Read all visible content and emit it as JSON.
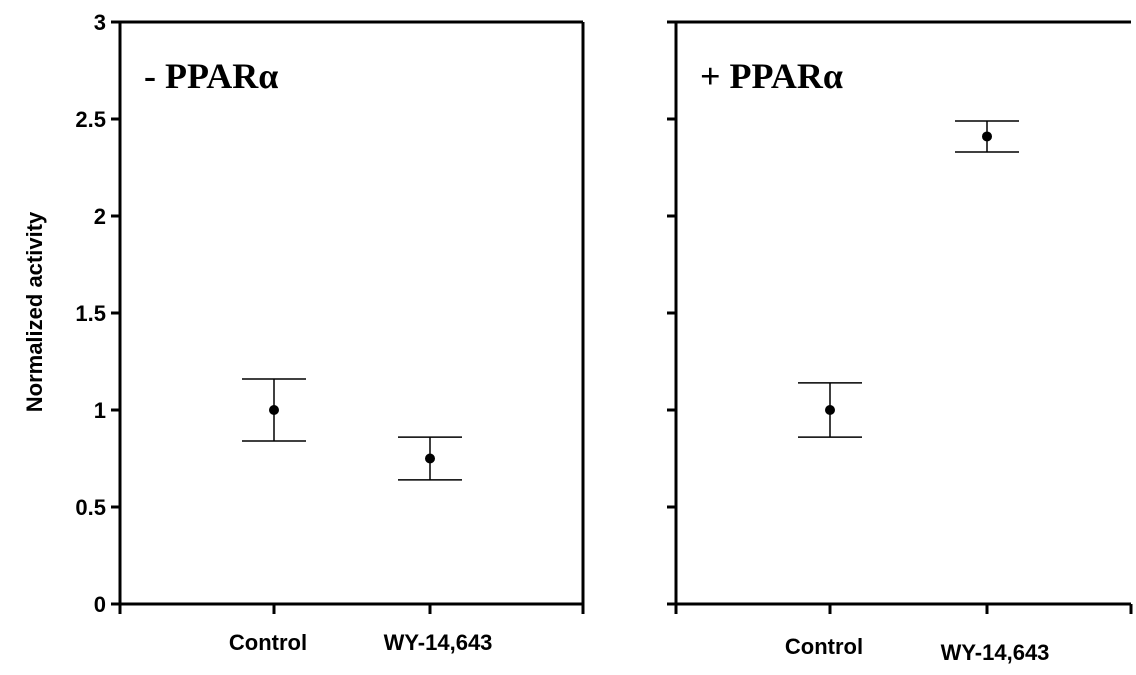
{
  "chart_data": [
    {
      "type": "scatter",
      "title": "- PPARα",
      "ylabel": "Normalized activity",
      "xlabel": "",
      "categories": [
        "Control",
        "WY-14,643"
      ],
      "values": [
        1.0,
        0.75
      ],
      "error_low": [
        0.84,
        0.64
      ],
      "error_high": [
        1.16,
        0.86
      ],
      "ylim": [
        0,
        3
      ],
      "yticks": [
        "0",
        "0.5",
        "1",
        "1.5",
        "2",
        "2.5",
        "3"
      ],
      "grid": false
    },
    {
      "type": "scatter",
      "title": "+ PPARα",
      "ylabel": "",
      "xlabel": "",
      "categories": [
        "Control",
        "WY-14,643"
      ],
      "values": [
        1.0,
        2.41
      ],
      "error_low": [
        0.86,
        2.33
      ],
      "error_high": [
        1.14,
        2.49
      ],
      "ylim": [
        0,
        3
      ],
      "grid": false
    }
  ],
  "colors": {
    "ink": "#000000",
    "background": "#ffffff"
  }
}
